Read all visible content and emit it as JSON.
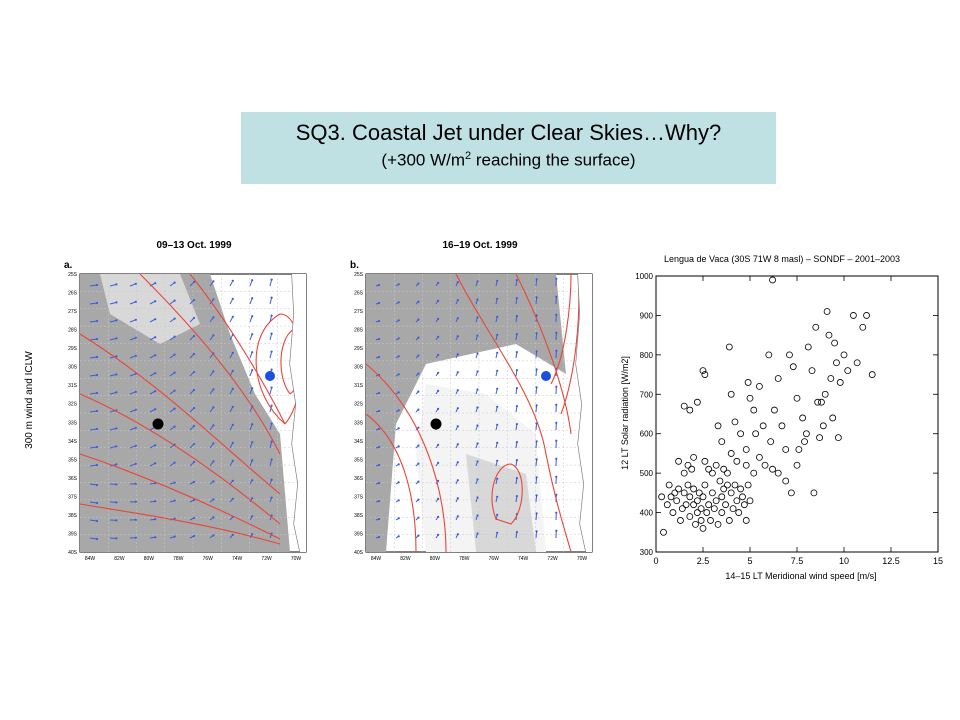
{
  "slide": {
    "title": "SQ3. Coastal Jet under Clear Skies…Why?",
    "subtitle_pre": "(+300 W/m",
    "subtitle_sup": "2",
    "subtitle_post": " reaching the surface)"
  },
  "maps": {
    "yaxis_label": "300 m wind and ICLW",
    "panel_a": {
      "title": "09–13 Oct. 1999",
      "letter": "a."
    },
    "panel_b": {
      "title": "16–19 Oct. 1999",
      "letter": "b."
    },
    "lat_ticks": [
      "25S",
      "26S",
      "27S",
      "28S",
      "29S",
      "30S",
      "31S",
      "32S",
      "33S",
      "34S",
      "35S",
      "36S",
      "37S",
      "38S",
      "39S",
      "40S"
    ],
    "lon_ticks_a": [
      "84W",
      "82W",
      "80W",
      "78W",
      "76W",
      "74W",
      "72W",
      "70W"
    ],
    "lon_ticks_b": [
      "84W",
      "82W",
      "80W",
      "78W",
      "76W",
      "74W",
      "72W",
      "70W"
    ],
    "colors": {
      "land_line": "#777777",
      "shade_dark": "#a8a8a8",
      "shade_light": "#d8d8d8",
      "contour": "#e8453c",
      "arrow": "#3a5de0",
      "dot_black": "#000000",
      "dot_blue": "#1c4fe0"
    }
  },
  "chart_data": {
    "type": "scatter",
    "title": "Lengua de Vaca (30S 71W 8 masl) – SONDF – 2001–2003",
    "xlabel": "14–15 LT Meridional wind speed [m/s]",
    "ylabel": "12 LT Solar radiation [W/m2]",
    "xlim": [
      0,
      15
    ],
    "ylim": [
      300,
      1000
    ],
    "xticks": [
      "0",
      "2.5",
      "5",
      "7.5",
      "10",
      "12.5",
      "15"
    ],
    "yticks": [
      "300",
      "400",
      "500",
      "600",
      "700",
      "800",
      "900",
      "1000"
    ],
    "points": [
      [
        0.3,
        440
      ],
      [
        0.4,
        350
      ],
      [
        0.6,
        420
      ],
      [
        0.7,
        470
      ],
      [
        0.8,
        440
      ],
      [
        0.9,
        400
      ],
      [
        1.0,
        450
      ],
      [
        1.1,
        430
      ],
      [
        1.2,
        460
      ],
      [
        1.3,
        380
      ],
      [
        1.4,
        410
      ],
      [
        1.5,
        500
      ],
      [
        1.5,
        450
      ],
      [
        1.6,
        420
      ],
      [
        1.7,
        470
      ],
      [
        1.8,
        390
      ],
      [
        1.8,
        440
      ],
      [
        1.9,
        510
      ],
      [
        2.0,
        420
      ],
      [
        2.0,
        460
      ],
      [
        2.1,
        370
      ],
      [
        2.2,
        400
      ],
      [
        2.2,
        430
      ],
      [
        2.3,
        450
      ],
      [
        2.4,
        380
      ],
      [
        2.4,
        410
      ],
      [
        2.5,
        440
      ],
      [
        2.5,
        360
      ],
      [
        2.6,
        470
      ],
      [
        2.7,
        400
      ],
      [
        2.8,
        420
      ],
      [
        2.9,
        380
      ],
      [
        3.0,
        450
      ],
      [
        3.0,
        500
      ],
      [
        3.1,
        410
      ],
      [
        3.2,
        430
      ],
      [
        3.3,
        370
      ],
      [
        3.4,
        480
      ],
      [
        3.5,
        440
      ],
      [
        3.5,
        400
      ],
      [
        3.6,
        460
      ],
      [
        3.7,
        420
      ],
      [
        3.8,
        500
      ],
      [
        3.9,
        380
      ],
      [
        4.0,
        450
      ],
      [
        4.1,
        410
      ],
      [
        4.2,
        470
      ],
      [
        4.3,
        430
      ],
      [
        4.4,
        400
      ],
      [
        4.5,
        460
      ],
      [
        4.6,
        440
      ],
      [
        4.7,
        420
      ],
      [
        4.8,
        380
      ],
      [
        4.9,
        470
      ],
      [
        5.0,
        430
      ],
      [
        1.2,
        530
      ],
      [
        1.7,
        520
      ],
      [
        2.0,
        540
      ],
      [
        2.6,
        530
      ],
      [
        2.8,
        510
      ],
      [
        3.2,
        520
      ],
      [
        3.6,
        510
      ],
      [
        4.0,
        550
      ],
      [
        4.3,
        530
      ],
      [
        4.8,
        520
      ],
      [
        5.2,
        500
      ],
      [
        5.5,
        540
      ],
      [
        5.8,
        520
      ],
      [
        6.2,
        510
      ],
      [
        6.5,
        500
      ],
      [
        6.9,
        480
      ],
      [
        7.2,
        450
      ],
      [
        7.5,
        520
      ],
      [
        1.5,
        670
      ],
      [
        1.8,
        660
      ],
      [
        2.2,
        680
      ],
      [
        2.5,
        760
      ],
      [
        2.6,
        750
      ],
      [
        3.3,
        620
      ],
      [
        3.5,
        580
      ],
      [
        3.9,
        820
      ],
      [
        4.0,
        700
      ],
      [
        4.2,
        630
      ],
      [
        4.5,
        600
      ],
      [
        4.9,
        730
      ],
      [
        5.0,
        690
      ],
      [
        5.2,
        660
      ],
      [
        5.5,
        720
      ],
      [
        5.7,
        620
      ],
      [
        6.0,
        800
      ],
      [
        6.1,
        580
      ],
      [
        6.3,
        660
      ],
      [
        6.5,
        740
      ],
      [
        6.7,
        620
      ],
      [
        6.9,
        560
      ],
      [
        7.1,
        800
      ],
      [
        7.3,
        770
      ],
      [
        7.5,
        690
      ],
      [
        7.8,
        640
      ],
      [
        8.0,
        600
      ],
      [
        8.1,
        820
      ],
      [
        8.3,
        760
      ],
      [
        8.5,
        870
      ],
      [
        8.6,
        680
      ],
      [
        8.7,
        590
      ],
      [
        8.9,
        620
      ],
      [
        9.0,
        700
      ],
      [
        9.1,
        910
      ],
      [
        9.2,
        850
      ],
      [
        9.3,
        740
      ],
      [
        9.5,
        830
      ],
      [
        9.6,
        780
      ],
      [
        9.8,
        730
      ],
      [
        10.0,
        800
      ],
      [
        10.2,
        760
      ],
      [
        10.5,
        900
      ],
      [
        10.7,
        780
      ],
      [
        11.0,
        870
      ],
      [
        11.2,
        900
      ],
      [
        11.5,
        750
      ],
      [
        8.8,
        680
      ],
      [
        9.4,
        640
      ],
      [
        7.6,
        560
      ],
      [
        6.2,
        990
      ],
      [
        5.3,
        600
      ],
      [
        4.8,
        560
      ],
      [
        7.9,
        580
      ],
      [
        8.4,
        450
      ],
      [
        9.7,
        590
      ],
      [
        3.8,
        470
      ]
    ]
  }
}
